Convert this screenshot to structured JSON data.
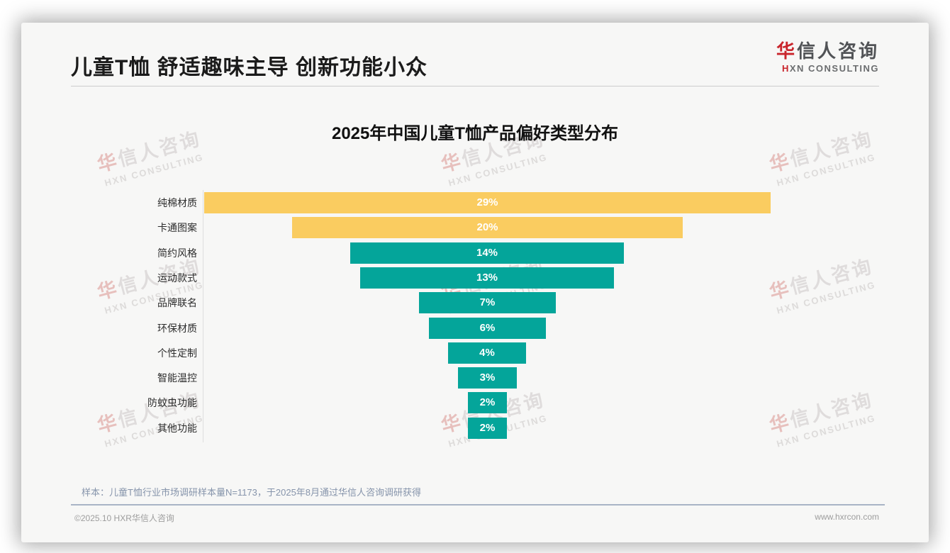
{
  "header": {
    "title": "儿童T恤 舒适趣味主导 创新功能小众",
    "logo": {
      "cn_first": "华",
      "cn_rest": "信人咨询",
      "en_first": "H",
      "en_rest": "XN CONSULTING"
    }
  },
  "chart_data": {
    "type": "bar",
    "title": "2025年中国儿童T恤产品偏好类型分布",
    "orientation": "horizontal_centered_funnel",
    "categories": [
      "纯棉材质",
      "卡通图案",
      "简约风格",
      "运动款式",
      "品牌联名",
      "环保材质",
      "个性定制",
      "智能温控",
      "防蚊虫功能",
      "其他功能"
    ],
    "values": [
      29,
      20,
      14,
      13,
      7,
      6,
      4,
      3,
      2,
      2
    ],
    "unit": "%",
    "value_label_format": "{value}%",
    "colors": [
      "#FACC60",
      "#FACC60",
      "#04A59A",
      "#04A59A",
      "#04A59A",
      "#04A59A",
      "#04A59A",
      "#04A59A",
      "#04A59A",
      "#04A59A"
    ],
    "xlim_percent": [
      0,
      29
    ],
    "legend": "none",
    "grid": "off"
  },
  "footnote": "样本：儿童T恤行业市场调研样本量N=1173，于2025年8月通过华信人咨询调研获得",
  "footer": {
    "left": "©2025.10 HXR华信人咨询",
    "right": "www.hxrcon.com"
  },
  "watermark": {
    "line1": "华信人咨询",
    "line2": "HXN CONSULTING"
  },
  "theme": {
    "accent_yellow": "#FACC60",
    "accent_teal": "#04A59A",
    "logo_red": "#C9252C"
  }
}
